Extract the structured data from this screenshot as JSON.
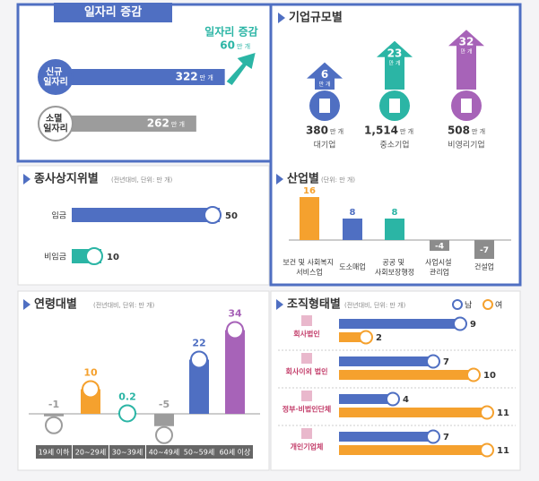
{
  "chart_data": [
    {
      "type": "bar",
      "title": "일자리 증감",
      "categories": [
        "신규\n일자리",
        "소멸\n일자리"
      ],
      "values": [
        322,
        262
      ],
      "colors": [
        "#4f6fc2",
        "#9c9c9c"
      ],
      "unit": "만 개",
      "change_label": "일자리 증감",
      "change": 60
    },
    {
      "type": "bar",
      "title": "기업규모별",
      "categories": [
        "대기업",
        "중소기업",
        "비영리기업"
      ],
      "values": [
        6,
        23,
        32
      ],
      "totals": [
        380,
        1514,
        508
      ],
      "total_labels": [
        "380",
        "1,514",
        "508"
      ],
      "colors": [
        "#4f6fc2",
        "#2bb5a5",
        "#a763b8"
      ],
      "unit": "만 개"
    },
    {
      "type": "bar",
      "title": "종사상지위별",
      "subtitle": "(전년대비, 단위: 만 개)",
      "categories": [
        "임금",
        "비임금"
      ],
      "values": [
        50,
        10
      ],
      "colors": [
        "#4f6fc2",
        "#2bb5a5"
      ]
    },
    {
      "type": "bar",
      "title": "산업별",
      "subtitle": "(단위: 만 개)",
      "categories": [
        "보건 및 사회복지\n서비스업",
        "도소매업",
        "공공 및\n사회보장행정",
        "사업시설\n관리업",
        "건설업"
      ],
      "values": [
        16,
        8,
        8,
        -4,
        -7
      ],
      "colors": [
        "#f5a12e",
        "#4f6fc2",
        "#2bb5a5",
        "#8c8c8c",
        "#8c8c8c"
      ]
    },
    {
      "type": "bar",
      "title": "연령대별",
      "subtitle": "(전년대비, 단위: 만 개)",
      "categories": [
        "19세 이하",
        "20~29세",
        "30~39세",
        "40~49세",
        "50~59세",
        "60세 이상"
      ],
      "values": [
        -1,
        10,
        0.2,
        -5,
        22,
        34
      ],
      "colors": [
        "#9c9c9c",
        "#f5a12e",
        "#2bb5a5",
        "#9c9c9c",
        "#4f6fc2",
        "#a763b8"
      ]
    },
    {
      "type": "bar",
      "title": "조직형태별",
      "subtitle": "(전년대비, 단위: 만 개)",
      "categories": [
        "회사법인",
        "회사이외 법인",
        "정부·비법인단체",
        "개인기업체"
      ],
      "series": [
        {
          "name": "남",
          "color": "#4f6fc2",
          "values": [
            9,
            7,
            4,
            7
          ]
        },
        {
          "name": "여",
          "color": "#f5a12e",
          "values": [
            2,
            10,
            11,
            11
          ]
        }
      ]
    }
  ]
}
